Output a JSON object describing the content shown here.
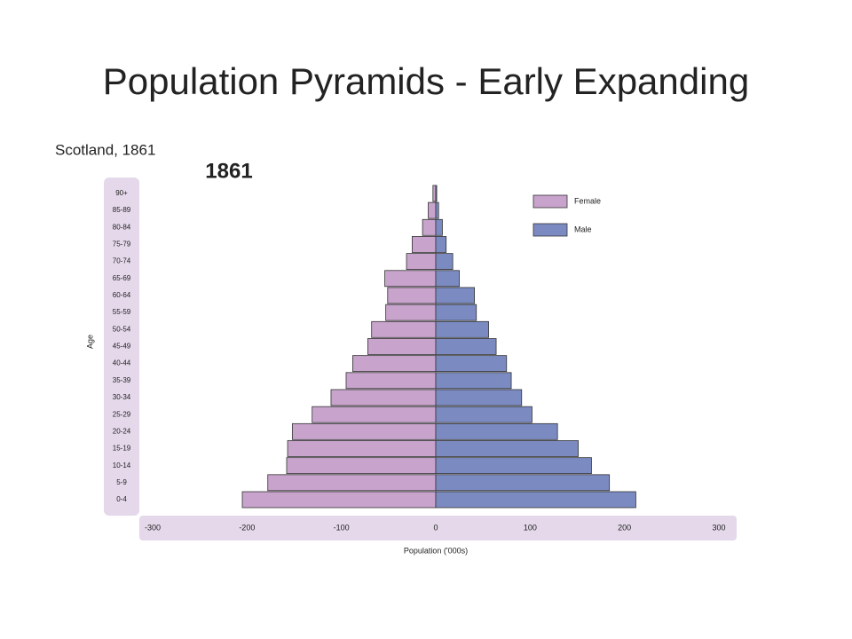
{
  "chart_data": {
    "type": "pyramid",
    "title": "Population Pyramids - Early Expanding",
    "subtitle": "Scotland, 1861",
    "chart_title": "1861",
    "y_label": "Age",
    "x_label": "Population ('000s)",
    "categories": [
      "0-4",
      "5-9",
      "10-14",
      "15-19",
      "20-24",
      "25-29",
      "30-34",
      "35-39",
      "40-44",
      "45-49",
      "50-54",
      "55-59",
      "60-64",
      "65-69",
      "70-74",
      "75-79",
      "80-84",
      "85-89",
      "90+"
    ],
    "series": [
      {
        "name": "Female",
        "color": "#c8a3cc",
        "values": [
          -205,
          -178,
          -158,
          -157,
          -152,
          -131,
          -111,
          -95,
          -88,
          -72,
          -68,
          -53,
          -51,
          -54,
          -31,
          -25,
          -14,
          -8,
          -3
        ]
      },
      {
        "name": "Male",
        "color": "#7b8bc2",
        "values": [
          212,
          184,
          165,
          151,
          129,
          102,
          91,
          80,
          75,
          64,
          56,
          43,
          41,
          25,
          18,
          11,
          7,
          3,
          1
        ]
      }
    ],
    "xlim": [
      -300,
      300
    ],
    "xticks": [
      -300,
      -200,
      -100,
      0,
      100,
      200,
      300
    ]
  }
}
